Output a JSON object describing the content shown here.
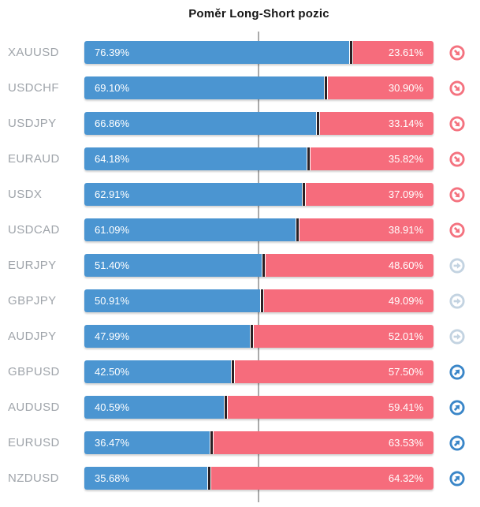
{
  "page": {
    "title": "Poměr Long-Short pozic"
  },
  "colors": {
    "long_bar": "#4b95d1",
    "short_bar": "#f66c7c",
    "divider": "#2b2024",
    "label": "#9fa4aa",
    "center_line": "#aaaaaa",
    "signal_down": "#f4727f",
    "signal_neutral": "#c3d3e1",
    "signal_up": "#3a86c8"
  },
  "chart_data": {
    "type": "bar",
    "variant": "horizontal-stacked",
    "title": "Poměr Long-Short pozic",
    "xlim": [
      0,
      100
    ],
    "center_reference_line": 50,
    "legend": "none",
    "grid": "center-line-only",
    "categories": [
      "XAUUSD",
      "USDCHF",
      "USDJPY",
      "EURAUD",
      "USDX",
      "USDCAD",
      "EURJPY",
      "GBPJPY",
      "AUDJPY",
      "GBPUSD",
      "AUDUSD",
      "EURUSD",
      "NZDUSD"
    ],
    "series": [
      {
        "name": "Long",
        "values": [
          76.39,
          69.1,
          66.86,
          64.18,
          62.91,
          61.09,
          51.4,
          50.91,
          47.99,
          42.5,
          40.59,
          36.47,
          35.68
        ]
      },
      {
        "name": "Short",
        "values": [
          23.61,
          30.9,
          33.14,
          35.82,
          37.09,
          38.91,
          48.6,
          49.09,
          52.01,
          57.5,
          59.41,
          63.53,
          64.32
        ]
      }
    ],
    "rows": [
      {
        "symbol": "XAUUSD",
        "long": 76.39,
        "short": 23.61,
        "long_label": "76.39%",
        "short_label": "23.61%",
        "signal": "down"
      },
      {
        "symbol": "USDCHF",
        "long": 69.1,
        "short": 30.9,
        "long_label": "69.10%",
        "short_label": "30.90%",
        "signal": "down"
      },
      {
        "symbol": "USDJPY",
        "long": 66.86,
        "short": 33.14,
        "long_label": "66.86%",
        "short_label": "33.14%",
        "signal": "down"
      },
      {
        "symbol": "EURAUD",
        "long": 64.18,
        "short": 35.82,
        "long_label": "64.18%",
        "short_label": "35.82%",
        "signal": "down"
      },
      {
        "symbol": "USDX",
        "long": 62.91,
        "short": 37.09,
        "long_label": "62.91%",
        "short_label": "37.09%",
        "signal": "down"
      },
      {
        "symbol": "USDCAD",
        "long": 61.09,
        "short": 38.91,
        "long_label": "61.09%",
        "short_label": "38.91%",
        "signal": "down"
      },
      {
        "symbol": "EURJPY",
        "long": 51.4,
        "short": 48.6,
        "long_label": "51.40%",
        "short_label": "48.60%",
        "signal": "neutral"
      },
      {
        "symbol": "GBPJPY",
        "long": 50.91,
        "short": 49.09,
        "long_label": "50.91%",
        "short_label": "49.09%",
        "signal": "neutral"
      },
      {
        "symbol": "AUDJPY",
        "long": 47.99,
        "short": 52.01,
        "long_label": "47.99%",
        "short_label": "52.01%",
        "signal": "neutral"
      },
      {
        "symbol": "GBPUSD",
        "long": 42.5,
        "short": 57.5,
        "long_label": "42.50%",
        "short_label": "57.50%",
        "signal": "up"
      },
      {
        "symbol": "AUDUSD",
        "long": 40.59,
        "short": 59.41,
        "long_label": "40.59%",
        "short_label": "59.41%",
        "signal": "up"
      },
      {
        "symbol": "EURUSD",
        "long": 36.47,
        "short": 63.53,
        "long_label": "36.47%",
        "short_label": "63.53%",
        "signal": "up"
      },
      {
        "symbol": "NZDUSD",
        "long": 35.68,
        "short": 64.32,
        "long_label": "35.68%",
        "short_label": "64.32%",
        "signal": "up"
      }
    ]
  }
}
